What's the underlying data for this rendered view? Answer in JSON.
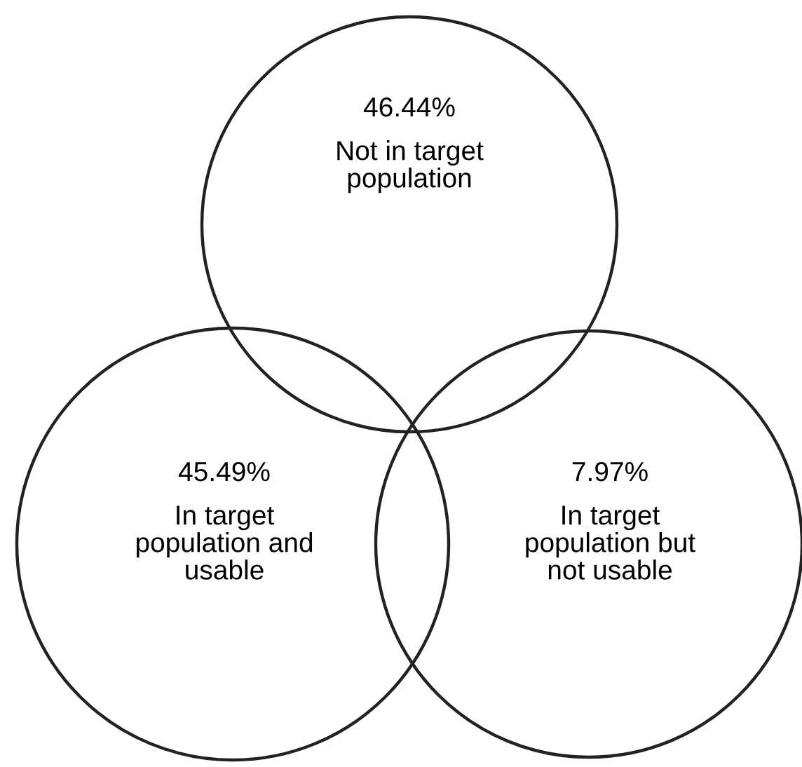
{
  "chart_data": {
    "type": "other",
    "categories": [
      "Not in target\npopulation",
      "In target\npopulation and\nusable",
      "In target\npopulation but\nnot usable"
    ],
    "values": [
      46.44,
      45.49,
      7.97
    ],
    "value_labels": [
      "46.44%",
      "45.49%",
      "7.97%"
    ]
  }
}
